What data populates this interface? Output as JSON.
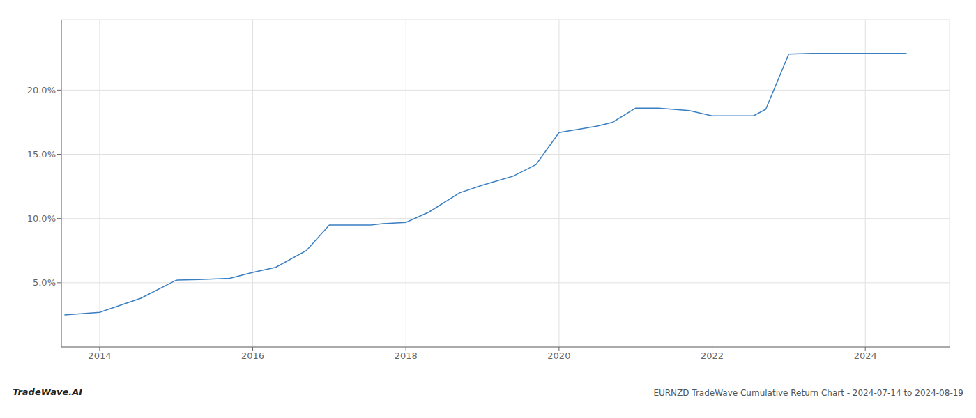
{
  "chart_data": {
    "type": "line",
    "title": "EURNZD TradeWave Cumulative Return Chart - 2024-07-14 to 2024-08-19",
    "annotations": [
      "TradeWave.AI"
    ],
    "x": [
      2013.54,
      2014.0,
      2014.54,
      2015.0,
      2015.3,
      2015.7,
      2016.0,
      2016.3,
      2016.7,
      2017.0,
      2017.3,
      2017.54,
      2017.7,
      2018.0,
      2018.3,
      2018.7,
      2019.0,
      2019.4,
      2019.7,
      2020.0,
      2020.3,
      2020.5,
      2020.7,
      2021.0,
      2021.3,
      2021.5,
      2021.7,
      2022.0,
      2022.3,
      2022.54,
      2022.7,
      2023.0,
      2023.3,
      2023.54,
      2023.7,
      2024.0,
      2024.3,
      2024.54
    ],
    "values": [
      2.5,
      2.7,
      3.8,
      5.2,
      5.25,
      5.35,
      5.8,
      6.2,
      7.5,
      9.5,
      9.5,
      9.5,
      9.6,
      9.7,
      10.5,
      12.0,
      12.6,
      13.3,
      14.2,
      16.7,
      17.0,
      17.2,
      17.5,
      18.6,
      18.6,
      18.5,
      18.4,
      18.0,
      18.0,
      18.0,
      18.5,
      22.8,
      22.85,
      22.85,
      22.85,
      22.85,
      22.85,
      22.85
    ],
    "color": "#3a7fc1",
    "xlim": [
      2013.5,
      2025.1
    ],
    "ylim": [
      0.0,
      25.5
    ],
    "xticks": [
      2014,
      2016,
      2018,
      2020,
      2022,
      2024
    ],
    "yticks": [
      {
        "value": 5.0,
        "label": "5.0%"
      },
      {
        "value": 10.0,
        "label": "10.0%"
      },
      {
        "value": 15.0,
        "label": "15.0%"
      },
      {
        "value": 20.0,
        "label": "20.0%"
      }
    ],
    "grid": true
  }
}
